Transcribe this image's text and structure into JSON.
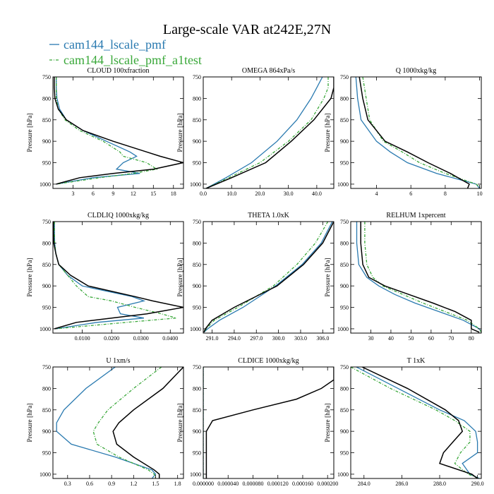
{
  "header": {
    "title": "Large-scale VAR at242E,27N",
    "legend": [
      {
        "name": "cam144_lscale_pmf",
        "color": "#2a7ab0",
        "dash": ""
      },
      {
        "name": "cam144_lscale_pmf_a1test",
        "color": "#3aa83a",
        "dash": "5,2,1,2"
      }
    ]
  },
  "colors": {
    "series_c": "#000000"
  },
  "chart_data": [
    {
      "type": "line",
      "title": "CLOUD 100xfraction",
      "ylabel": "Pressure [hPa]",
      "xlim": [
        0,
        19.5
      ],
      "ylim": [
        750,
        1010
      ],
      "xticks": [
        3,
        6,
        9,
        12,
        15,
        18
      ],
      "xticklabels": [
        "3",
        "6",
        "9",
        "12",
        "15",
        "18"
      ],
      "yticks": [
        750,
        800,
        850,
        900,
        950,
        1000
      ],
      "yticklabels": [
        "750",
        "800",
        "850",
        "900",
        "950",
        "1000"
      ],
      "y": [
        750,
        775,
        800,
        825,
        850,
        875,
        900,
        925,
        935,
        950,
        965,
        975,
        985,
        1000
      ],
      "series": [
        {
          "x": [
            0.5,
            0.5,
            0.6,
            1.0,
            2.0,
            4.5,
            8.0,
            11.5,
            12.5,
            10.5,
            9.5,
            13.0,
            6.0,
            0.5
          ]
        },
        {
          "x": [
            0.5,
            0.5,
            0.5,
            0.8,
            1.8,
            4.0,
            7.5,
            10.0,
            10.5,
            14.0,
            15.5,
            12.0,
            7.0,
            0.5
          ]
        },
        {
          "x": [
            0.2,
            0.2,
            0.3,
            0.8,
            2.0,
            4.5,
            9.0,
            14.0,
            16.0,
            19.5,
            15.0,
            9.0,
            4.0,
            0.5
          ]
        }
      ]
    },
    {
      "type": "line",
      "title": "OMEGA 864xPa/s",
      "ylabel": "Pressure [hPa]",
      "xlim": [
        0,
        46
      ],
      "ylim": [
        750,
        1010
      ],
      "xticks": [
        0,
        10,
        20,
        30,
        40
      ],
      "xticklabels": [
        "0.0",
        "10.0",
        "20.0",
        "30.0",
        "40.0"
      ],
      "yticks": [
        750,
        800,
        850,
        900,
        950,
        1000
      ],
      "yticklabels": [
        "750",
        "800",
        "850",
        "900",
        "950",
        "1000"
      ],
      "y": [
        750,
        775,
        800,
        850,
        900,
        950,
        985,
        1010
      ],
      "series": [
        {
          "x": [
            42,
            40,
            38,
            33,
            26,
            17,
            8,
            1
          ]
        },
        {
          "x": [
            44,
            44,
            42.5,
            38,
            30,
            20,
            9,
            1
          ]
        },
        {
          "x": [
            46,
            46,
            45,
            39,
            31,
            22,
            10,
            1
          ]
        }
      ]
    },
    {
      "type": "line",
      "title": "Q 1000xkg/kg",
      "ylabel": "Pressure [hPa]",
      "xlim": [
        2.5,
        10.1
      ],
      "ylim": [
        750,
        1010
      ],
      "xticks": [
        4,
        6,
        8,
        10
      ],
      "xticklabels": [
        "4",
        "6",
        "8",
        "10"
      ],
      "yticks": [
        750,
        800,
        850,
        900,
        950,
        1000
      ],
      "yticklabels": [
        "750",
        "800",
        "850",
        "900",
        "950",
        "1000"
      ],
      "y": [
        750,
        800,
        850,
        900,
        925,
        950,
        975,
        1000,
        1010
      ],
      "series": [
        {
          "x": [
            2.8,
            2.9,
            3.1,
            4.0,
            4.8,
            5.8,
            7.5,
            9.8,
            10.0
          ]
        },
        {
          "x": [
            3.2,
            3.4,
            3.6,
            4.4,
            5.5,
            6.5,
            8.0,
            9.8,
            10.1
          ]
        },
        {
          "x": [
            3.0,
            3.2,
            3.5,
            4.5,
            5.8,
            7.0,
            8.3,
            9.4,
            9.3
          ]
        }
      ]
    },
    {
      "type": "line",
      "title": "CLDLIQ 1000xkg/kg",
      "ylabel": "Pressure [hPa]",
      "xlim": [
        0,
        0.0445
      ],
      "ylim": [
        750,
        1010
      ],
      "xticks": [
        0.01,
        0.02,
        0.03,
        0.04
      ],
      "xticklabels": [
        "0.0100",
        "0.0200",
        "0.0300",
        "0.0400"
      ],
      "yticks": [
        750,
        800,
        850,
        900,
        950,
        1000
      ],
      "yticklabels": [
        "750",
        "800",
        "850",
        "900",
        "950",
        "1000"
      ],
      "y": [
        750,
        775,
        800,
        825,
        850,
        875,
        900,
        925,
        935,
        950,
        965,
        975,
        985,
        1000
      ],
      "series": [
        {
          "x": [
            0.0005,
            0.0005,
            0.0006,
            0.001,
            0.002,
            0.005,
            0.01,
            0.027,
            0.031,
            0.022,
            0.023,
            0.031,
            0.015,
            0.001
          ]
        },
        {
          "x": [
            0.0005,
            0.0005,
            0.0006,
            0.001,
            0.002,
            0.005,
            0.008,
            0.012,
            0.02,
            0.028,
            0.037,
            0.042,
            0.025,
            0.001
          ]
        },
        {
          "x": [
            0.0002,
            0.0002,
            0.0003,
            0.001,
            0.002,
            0.006,
            0.012,
            0.028,
            0.034,
            0.0445,
            0.032,
            0.02,
            0.008,
            0.0005
          ]
        }
      ]
    },
    {
      "type": "line",
      "title": "THETA 1.0xK",
      "ylabel": "Pressure [hPa]",
      "xlim": [
        289.8,
        307.5
      ],
      "ylim": [
        750,
        1010
      ],
      "xticks": [
        291,
        294,
        297,
        300,
        303,
        306
      ],
      "xticklabels": [
        "291.0",
        "294.0",
        "297.0",
        "300.0",
        "303.0",
        "306.0"
      ],
      "yticks": [
        750,
        800,
        850,
        900,
        950,
        1000
      ],
      "yticklabels": [
        "750",
        "800",
        "850",
        "900",
        "950",
        "1000"
      ],
      "y": [
        750,
        800,
        850,
        900,
        950,
        980,
        1000,
        1008
      ],
      "series": [
        {
          "x": [
            307.3,
            305.8,
            303.2,
            299.6,
            295.2,
            292.0,
            290.4,
            289.9
          ]
        },
        {
          "x": [
            306.7,
            305.0,
            302.5,
            299.3,
            294.5,
            291.3,
            290.2,
            289.9
          ]
        },
        {
          "x": [
            307.5,
            306.0,
            303.4,
            299.8,
            294.0,
            291.0,
            290.1,
            289.9
          ]
        }
      ]
    },
    {
      "type": "line",
      "title": "RELHUM 1xpercent",
      "ylabel": "Pressure [hPa]",
      "xlim": [
        20,
        85
      ],
      "ylim": [
        750,
        1010
      ],
      "xticks": [
        30,
        40,
        50,
        60,
        70,
        80
      ],
      "xticklabels": [
        "30",
        "40",
        "50",
        "60",
        "70",
        "80"
      ],
      "yticks": [
        750,
        800,
        850,
        900,
        950,
        1000
      ],
      "yticklabels": [
        "750",
        "800",
        "850",
        "900",
        "950",
        "1000"
      ],
      "y": [
        750,
        800,
        850,
        880,
        900,
        920,
        940,
        960,
        980,
        1000,
        1008
      ],
      "series": [
        {
          "x": [
            23,
            23,
            24,
            28,
            34,
            42,
            52,
            64,
            76,
            84,
            85
          ]
        },
        {
          "x": [
            27,
            27,
            28,
            31,
            36,
            46,
            56,
            67,
            78,
            84,
            85
          ]
        },
        {
          "x": [
            25,
            25,
            26,
            29,
            37,
            49,
            61,
            72,
            80,
            80,
            84
          ]
        }
      ]
    },
    {
      "type": "line",
      "title": "U 1xm/s",
      "ylabel": "Pressure [hPa]",
      "xlim": [
        0.1,
        1.88
      ],
      "ylim": [
        750,
        1010
      ],
      "xticks": [
        0.3,
        0.6,
        0.9,
        1.2,
        1.5,
        1.8
      ],
      "xticklabels": [
        "0.3",
        "0.6",
        "0.9",
        "1.2",
        "1.5",
        "1.8"
      ],
      "yticks": [
        750,
        800,
        850,
        900,
        950,
        1000
      ],
      "yticklabels": [
        "750",
        "800",
        "850",
        "900",
        "950",
        "1000"
      ],
      "y": [
        750,
        800,
        850,
        880,
        900,
        930,
        960,
        990,
        1000,
        1010
      ],
      "series": [
        {
          "x": [
            0.95,
            0.55,
            0.25,
            0.15,
            0.15,
            0.35,
            0.95,
            1.45,
            1.5,
            1.45
          ]
        },
        {
          "x": [
            1.58,
            1.2,
            0.85,
            0.72,
            0.65,
            0.7,
            1.0,
            1.4,
            1.48,
            1.5
          ]
        },
        {
          "x": [
            1.88,
            1.6,
            1.2,
            1.0,
            0.92,
            0.97,
            1.2,
            1.48,
            1.55,
            1.55
          ]
        }
      ]
    },
    {
      "type": "line",
      "title": "CLDICE 1000xkg/kg",
      "ylabel": "Pressure [hPa]",
      "xlim": [
        0,
        0.00021
      ],
      "ylim": [
        750,
        1010
      ],
      "xticks": [
        0,
        4e-05,
        8e-05,
        0.00012,
        0.00016,
        0.0002
      ],
      "xticklabels": [
        "0.000000",
        "0.000040",
        "0.000080",
        "0.000120",
        "0.000160",
        "0.000200"
      ],
      "yticks": [
        750,
        800,
        850,
        900,
        950,
        1000
      ],
      "yticklabels": [
        "750",
        "800",
        "850",
        "900",
        "950",
        "1000"
      ],
      "y": [
        750,
        780,
        800,
        825,
        850,
        875,
        900,
        1010
      ],
      "series": [
        {
          "x": [
            0,
            0,
            0,
            0,
            0,
            0,
            0,
            0
          ]
        },
        {
          "x": [
            0,
            0,
            0,
            0,
            0,
            0,
            0,
            0
          ]
        },
        {
          "x": [
            0.00021,
            0.00021,
            0.00019,
            0.00015,
            8e-05,
            1.5e-05,
            5e-06,
            5e-06
          ]
        }
      ]
    },
    {
      "type": "line",
      "title": "T 1xK",
      "ylabel": "Pressure [hPa]",
      "xlim": [
        283.3,
        290.2
      ],
      "ylim": [
        750,
        1010
      ],
      "xticks": [
        284,
        286,
        288,
        290
      ],
      "xticklabels": [
        "284.0",
        "286.0",
        "288.0",
        "290.0"
      ],
      "yticks": [
        750,
        800,
        850,
        900,
        950,
        1000
      ],
      "yticklabels": [
        "750",
        "800",
        "850",
        "900",
        "950",
        "1000"
      ],
      "y": [
        750,
        800,
        850,
        875,
        900,
        925,
        950,
        975,
        1000,
        1010
      ],
      "series": [
        {
          "x": [
            283.6,
            285.8,
            288.0,
            289.3,
            289.9,
            290.0,
            290.0,
            289.2,
            289.6,
            290.1
          ]
        },
        {
          "x": [
            283.3,
            285.4,
            287.8,
            288.8,
            289.6,
            289.6,
            289.1,
            288.8,
            289.5,
            290.1
          ]
        },
        {
          "x": [
            283.9,
            286.3,
            288.3,
            289.0,
            289.2,
            288.7,
            288.2,
            288.0,
            289.7,
            290.0
          ]
        }
      ]
    }
  ]
}
